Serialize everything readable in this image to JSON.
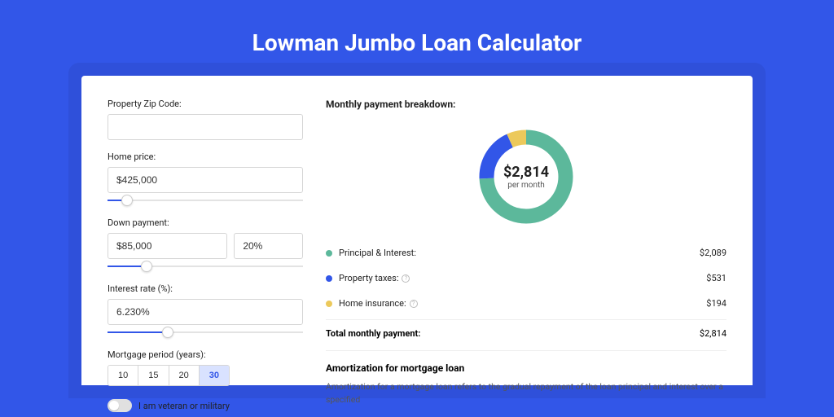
{
  "title": "Lowman Jumbo Loan Calculator",
  "colors": {
    "background": "#3256e8",
    "card": "#ffffff",
    "principal": "#5cb89b",
    "taxes": "#3256e8",
    "insurance": "#ecc95b"
  },
  "form": {
    "zip": {
      "label": "Property Zip Code:",
      "value": ""
    },
    "home_price": {
      "label": "Home price:",
      "value": "$425,000",
      "slider_pct": 10
    },
    "down_payment": {
      "label": "Down payment:",
      "amount": "$85,000",
      "percent": "20%",
      "slider_pct": 20
    },
    "interest_rate": {
      "label": "Interest rate (%):",
      "value": "6.230%",
      "slider_pct": 31
    },
    "mortgage_period": {
      "label": "Mortgage period (years):",
      "options": [
        "10",
        "15",
        "20",
        "30"
      ],
      "selected": "30"
    },
    "veteran": {
      "label": "I am veteran or military",
      "checked": false
    }
  },
  "breakdown": {
    "title": "Monthly payment breakdown:",
    "total_display": "$2,814",
    "total_sub": "per month",
    "items": [
      {
        "label": "Principal & Interest:",
        "value": "$2,089",
        "amount": 2089,
        "color": "#5cb89b",
        "info": false
      },
      {
        "label": "Property taxes:",
        "value": "$531",
        "amount": 531,
        "color": "#3256e8",
        "info": true
      },
      {
        "label": "Home insurance:",
        "value": "$194",
        "amount": 194,
        "color": "#ecc95b",
        "info": true
      }
    ],
    "total_label": "Total monthly payment:",
    "total_value": "$2,814",
    "donut": {
      "slices": [
        {
          "color": "#5cb89b",
          "fraction": 0.742
        },
        {
          "color": "#3256e8",
          "fraction": 0.189
        },
        {
          "color": "#ecc95b",
          "fraction": 0.069
        }
      ],
      "stroke_width": 18
    }
  },
  "amortization": {
    "title": "Amortization for mortgage loan",
    "text": "Amortization for a mortgage loan refers to the gradual repayment of the loan principal and interest over a specified"
  }
}
